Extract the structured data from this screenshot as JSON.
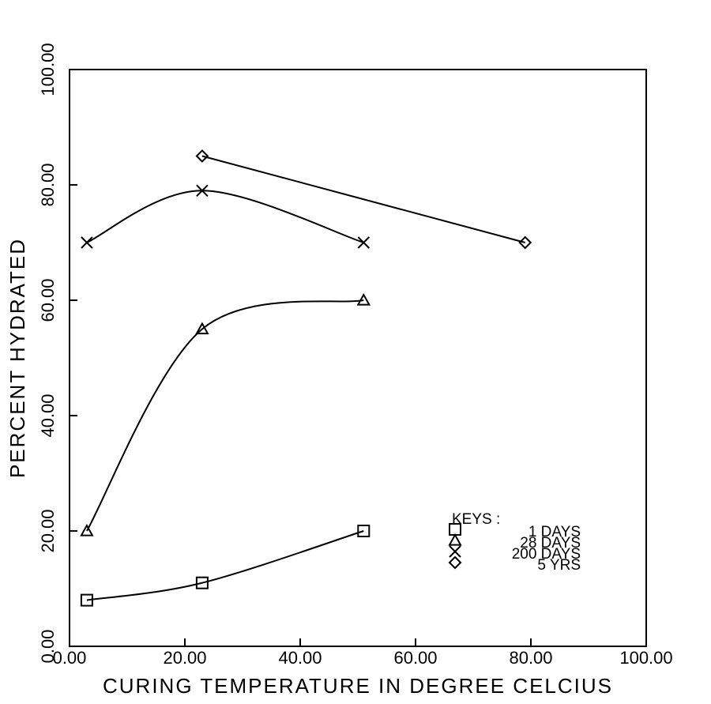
{
  "chart_data": {
    "type": "line",
    "xlabel": "CURING TEMPERATURE IN DEGREE CELCIUS",
    "ylabel": "PERCENT HYDRATED",
    "legend_title": "KEYS :",
    "legend": "lower right",
    "xlim": [
      0,
      100
    ],
    "ylim": [
      0,
      100
    ],
    "xticks": [
      {
        "value": 0,
        "label": "0.00"
      },
      {
        "value": 20,
        "label": "20.00"
      },
      {
        "value": 40,
        "label": "40.00"
      },
      {
        "value": 60,
        "label": "60.00"
      },
      {
        "value": 80,
        "label": "80.00"
      },
      {
        "value": 100,
        "label": "100.00"
      }
    ],
    "yticks": [
      {
        "value": 0,
        "label": "0.00"
      },
      {
        "value": 20,
        "label": "20.00"
      },
      {
        "value": 40,
        "label": "40.00"
      },
      {
        "value": 60,
        "label": "60.00"
      },
      {
        "value": 80,
        "label": "80.00"
      },
      {
        "value": 100,
        "label": "100.00"
      }
    ],
    "series": [
      {
        "name": "1 DAYS",
        "color": "#000000",
        "marker": "square",
        "x": [
          3,
          23,
          51
        ],
        "values": [
          8,
          11,
          20
        ]
      },
      {
        "name": "28 DAYS",
        "color": "#000000",
        "marker": "triangle",
        "x": [
          3,
          23,
          51
        ],
        "values": [
          20,
          55,
          60
        ]
      },
      {
        "name": "200 DAYS",
        "color": "#000000",
        "marker": "x",
        "x": [
          3,
          23,
          51
        ],
        "values": [
          70,
          79,
          70
        ]
      },
      {
        "name": "5 YRS",
        "color": "#000000",
        "marker": "diamond",
        "x": [
          23,
          79
        ],
        "values": [
          85,
          70
        ]
      }
    ]
  }
}
